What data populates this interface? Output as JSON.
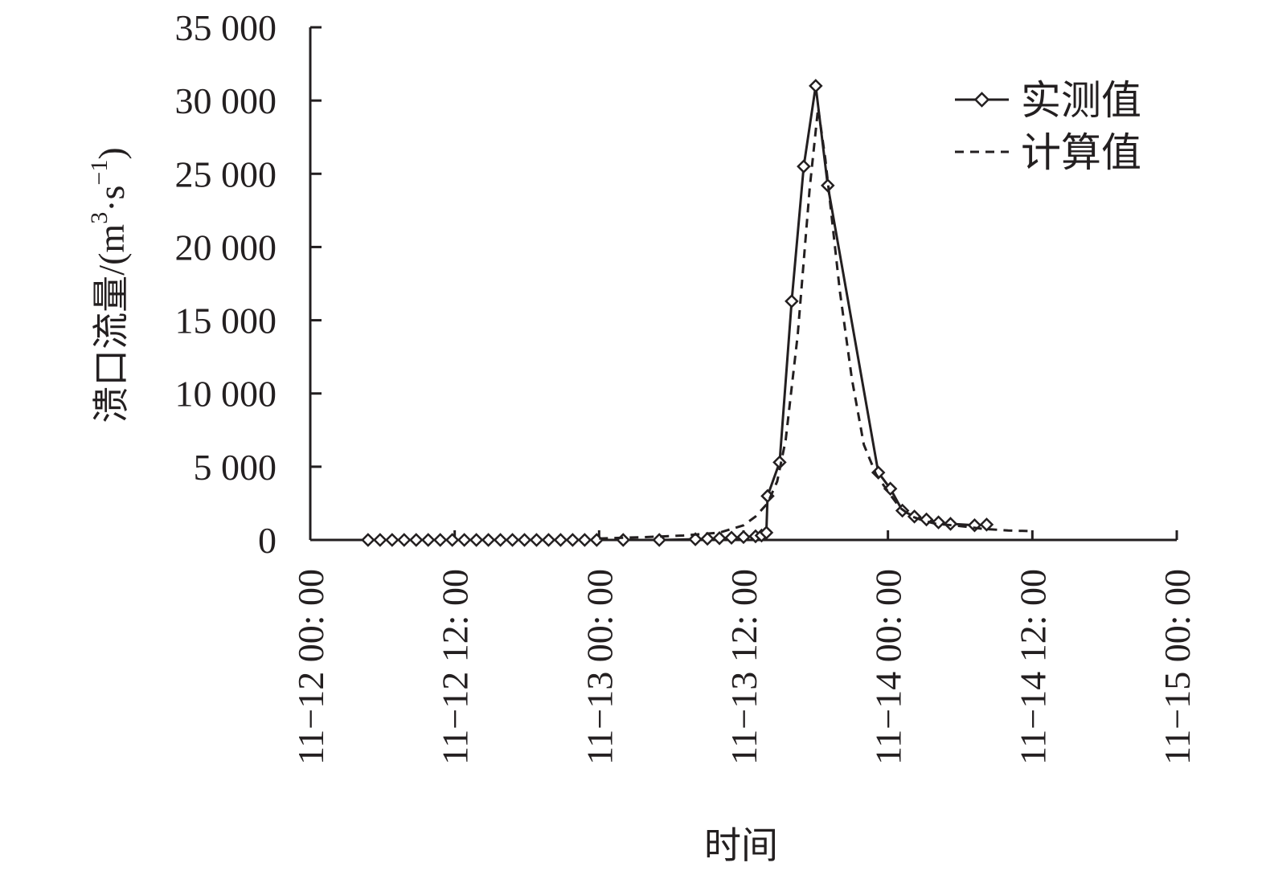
{
  "chart_data": {
    "type": "line",
    "title": "",
    "xlabel": "时间",
    "ylabel": "溃口流量/(m³·s⁻¹)",
    "ylabel_main": "溃口流量/(m",
    "ylabel_sup1": "3",
    "ylabel_mid": "·s",
    "ylabel_sup2": "−1",
    "ylabel_end": ")",
    "x_unit": "hours since 11-12 00:00",
    "xlim": [
      0,
      72
    ],
    "ylim": [
      0,
      35000
    ],
    "x_ticks": [
      {
        "value": 0,
        "label": "11−12 00: 00"
      },
      {
        "value": 12,
        "label": "11−12 12: 00"
      },
      {
        "value": 24,
        "label": "11−13 00: 00"
      },
      {
        "value": 36,
        "label": "11−13 12: 00"
      },
      {
        "value": 48,
        "label": "11−14 00: 00"
      },
      {
        "value": 60,
        "label": "11−14 12: 00"
      },
      {
        "value": 72,
        "label": "11−15 00: 00"
      }
    ],
    "y_ticks": [
      {
        "value": 0,
        "label": "0"
      },
      {
        "value": 5000,
        "label": "5 000"
      },
      {
        "value": 10000,
        "label": "10 000"
      },
      {
        "value": 15000,
        "label": "15 000"
      },
      {
        "value": 20000,
        "label": "20 000"
      },
      {
        "value": 25000,
        "label": "25 000"
      },
      {
        "value": 30000,
        "label": "30 000"
      },
      {
        "value": 35000,
        "label": "35 000"
      }
    ],
    "legend_position": "top-right",
    "series": [
      {
        "name": "实测值",
        "style": "solid",
        "marker": "diamond",
        "color": "#231f20",
        "points": [
          [
            4.8,
            0
          ],
          [
            5.8,
            0
          ],
          [
            6.8,
            0
          ],
          [
            7.8,
            0
          ],
          [
            8.8,
            0
          ],
          [
            9.8,
            0
          ],
          [
            10.8,
            0
          ],
          [
            11.8,
            0
          ],
          [
            12.8,
            0
          ],
          [
            13.8,
            0
          ],
          [
            14.8,
            0
          ],
          [
            15.8,
            0
          ],
          [
            16.8,
            0
          ],
          [
            17.8,
            0
          ],
          [
            18.8,
            0
          ],
          [
            19.8,
            0
          ],
          [
            20.8,
            0
          ],
          [
            21.8,
            0
          ],
          [
            22.8,
            0
          ],
          [
            23.8,
            0
          ],
          [
            26.0,
            0
          ],
          [
            29.0,
            0
          ],
          [
            32.0,
            50
          ],
          [
            33.0,
            80
          ],
          [
            34.0,
            120
          ],
          [
            35.0,
            150
          ],
          [
            36.0,
            200
          ],
          [
            37.0,
            250
          ],
          [
            37.5,
            300
          ],
          [
            37.9,
            500
          ],
          [
            38.0,
            3000
          ],
          [
            39.0,
            5300
          ],
          [
            40.0,
            16300
          ],
          [
            41.0,
            25500
          ],
          [
            42.0,
            31000
          ],
          [
            43.0,
            24200
          ],
          [
            47.2,
            4600
          ],
          [
            48.2,
            3500
          ],
          [
            49.2,
            2000
          ],
          [
            50.2,
            1600
          ],
          [
            51.2,
            1400
          ],
          [
            52.2,
            1200
          ],
          [
            53.2,
            1100
          ],
          [
            55.2,
            1000
          ],
          [
            56.2,
            1050
          ]
        ]
      },
      {
        "name": "计算值",
        "style": "dashed",
        "marker": "none",
        "color": "#231f20",
        "points": [
          [
            24.0,
            100
          ],
          [
            28.0,
            200
          ],
          [
            31.0,
            300
          ],
          [
            34.0,
            500
          ],
          [
            36.0,
            1000
          ],
          [
            37.0,
            1600
          ],
          [
            38.0,
            2500
          ],
          [
            38.8,
            4000
          ],
          [
            39.5,
            6800
          ],
          [
            40.5,
            14000
          ],
          [
            41.5,
            24000
          ],
          [
            42.2,
            29500
          ],
          [
            42.8,
            26000
          ],
          [
            44.0,
            17000
          ],
          [
            45.0,
            11000
          ],
          [
            46.0,
            6500
          ],
          [
            47.0,
            4500
          ],
          [
            48.0,
            3300
          ],
          [
            49.0,
            2200
          ],
          [
            50.0,
            1600
          ],
          [
            51.0,
            1300
          ],
          [
            52.0,
            1100
          ],
          [
            54.0,
            950
          ],
          [
            56.0,
            750
          ],
          [
            58.0,
            650
          ],
          [
            60.0,
            600
          ]
        ]
      }
    ]
  }
}
